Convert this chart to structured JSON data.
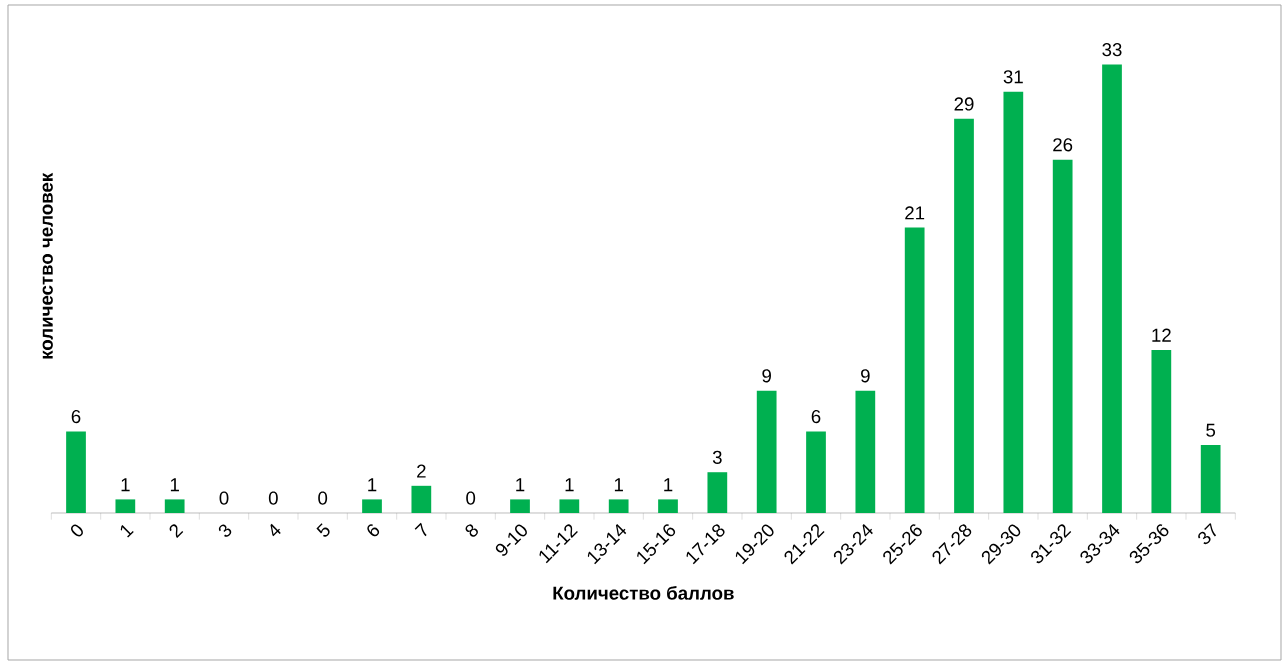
{
  "chart_data": {
    "type": "bar",
    "xlabel": "Количество баллов",
    "ylabel": "количество человек",
    "categories": [
      "0",
      "1",
      "2",
      "3",
      "4",
      "5",
      "6",
      "7",
      "8",
      "9-10",
      "11-12",
      "13-14",
      "15-16",
      "17-18",
      "19-20",
      "21-22",
      "23-24",
      "25-26",
      "27-28",
      "29-30",
      "31-32",
      "33-34",
      "35-36",
      "37"
    ],
    "values": [
      6,
      1,
      1,
      0,
      0,
      0,
      1,
      2,
      0,
      1,
      1,
      1,
      1,
      3,
      9,
      6,
      9,
      21,
      29,
      31,
      26,
      33,
      12,
      5
    ],
    "color": "#00b050",
    "data_labels": true
  }
}
